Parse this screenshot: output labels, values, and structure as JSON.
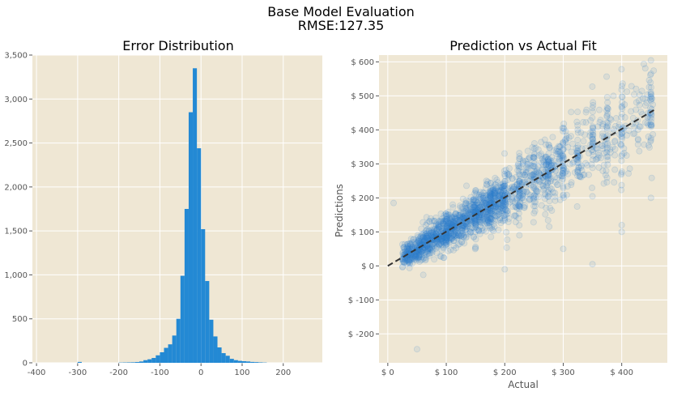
{
  "figure": {
    "title": "Base Model Evaluation",
    "subtitle": "RMSE:127.35",
    "colors": {
      "panel_bg": "#EFE7D4",
      "grid": "#FFFFFF",
      "bar": "#2389D4",
      "point": "#2E7FCC",
      "fit_line": "#333333",
      "tick_text": "#555555"
    }
  },
  "chart_data": [
    {
      "type": "bar",
      "title": "Error Distribution",
      "xlabel": "",
      "ylabel": "",
      "xlim": [
        -410,
        295
      ],
      "ylim": [
        0,
        3500
      ],
      "xticks": [
        -400,
        -300,
        -200,
        -100,
        0,
        100,
        200
      ],
      "xtick_labels": [
        "-400",
        "-300",
        "-200",
        "-100",
        "0",
        "100",
        "200"
      ],
      "yticks": [
        0,
        500,
        1000,
        1500,
        2000,
        2500,
        3000,
        3500
      ],
      "ytick_labels": [
        "0",
        "500",
        "1,000",
        "1,500",
        "2,000",
        "2,500",
        "3,000",
        "3,500"
      ],
      "bin_edges": [
        -300,
        -290,
        -200,
        -190,
        -180,
        -170,
        -160,
        -150,
        -140,
        -130,
        -120,
        -110,
        -100,
        -90,
        -80,
        -70,
        -60,
        -50,
        -40,
        -30,
        -20,
        -10,
        0,
        10,
        20,
        30,
        40,
        50,
        60,
        70,
        80,
        90,
        100,
        110,
        120,
        130,
        140,
        150,
        160,
        170,
        180,
        190,
        200
      ],
      "bins": [
        {
          "x0": -300,
          "x1": -290,
          "count": 10
        },
        {
          "x0": -200,
          "x1": -190,
          "count": 3
        },
        {
          "x0": -190,
          "x1": -180,
          "count": 4
        },
        {
          "x0": -180,
          "x1": -170,
          "count": 5
        },
        {
          "x0": -170,
          "x1": -160,
          "count": 6
        },
        {
          "x0": -160,
          "x1": -150,
          "count": 9
        },
        {
          "x0": -150,
          "x1": -140,
          "count": 15
        },
        {
          "x0": -140,
          "x1": -130,
          "count": 30
        },
        {
          "x0": -130,
          "x1": -120,
          "count": 40
        },
        {
          "x0": -120,
          "x1": -110,
          "count": 55
        },
        {
          "x0": -110,
          "x1": -100,
          "count": 85
        },
        {
          "x0": -100,
          "x1": -90,
          "count": 120
        },
        {
          "x0": -90,
          "x1": -80,
          "count": 170
        },
        {
          "x0": -80,
          "x1": -70,
          "count": 210
        },
        {
          "x0": -70,
          "x1": -60,
          "count": 310
        },
        {
          "x0": -60,
          "x1": -50,
          "count": 500
        },
        {
          "x0": -50,
          "x1": -40,
          "count": 990
        },
        {
          "x0": -40,
          "x1": -30,
          "count": 1750
        },
        {
          "x0": -30,
          "x1": -20,
          "count": 2850
        },
        {
          "x0": -20,
          "x1": -10,
          "count": 3350
        },
        {
          "x0": -10,
          "x1": 0,
          "count": 2440
        },
        {
          "x0": 0,
          "x1": 10,
          "count": 1520
        },
        {
          "x0": 10,
          "x1": 20,
          "count": 930
        },
        {
          "x0": 20,
          "x1": 30,
          "count": 490
        },
        {
          "x0": 30,
          "x1": 40,
          "count": 300
        },
        {
          "x0": 40,
          "x1": 50,
          "count": 175
        },
        {
          "x0": 50,
          "x1": 60,
          "count": 110
        },
        {
          "x0": 60,
          "x1": 70,
          "count": 80
        },
        {
          "x0": 70,
          "x1": 80,
          "count": 45
        },
        {
          "x0": 80,
          "x1": 90,
          "count": 30
        },
        {
          "x0": 90,
          "x1": 100,
          "count": 22
        },
        {
          "x0": 100,
          "x1": 110,
          "count": 18
        },
        {
          "x0": 110,
          "x1": 120,
          "count": 15
        },
        {
          "x0": 120,
          "x1": 130,
          "count": 10
        },
        {
          "x0": 130,
          "x1": 140,
          "count": 8
        },
        {
          "x0": 140,
          "x1": 150,
          "count": 5
        },
        {
          "x0": 150,
          "x1": 160,
          "count": 3
        }
      ],
      "grid": true
    },
    {
      "type": "scatter",
      "title": "Prediction vs Actual Fit",
      "xlabel": "Actual",
      "ylabel": "Predictions",
      "xlim": [
        -15,
        478
      ],
      "ylim": [
        -285,
        620
      ],
      "xticks": [
        0,
        100,
        200,
        300,
        400
      ],
      "xtick_labels": [
        "$ 0",
        "$ 100",
        "$ 200",
        "$ 300",
        "$ 400"
      ],
      "yticks": [
        -200,
        -100,
        0,
        100,
        200,
        300,
        400,
        500,
        600
      ],
      "ytick_labels": [
        "$ -200",
        "$ -100",
        "$ 0",
        "$ 100",
        "$ 200",
        "$ 300",
        "$ 400",
        "$ 500",
        "$ 600"
      ],
      "fit_line": {
        "x": [
          0,
          455
        ],
        "y": [
          0,
          458
        ],
        "style": "dashed"
      },
      "point_bands": [
        {
          "x_range": [
            25,
            60
          ],
          "y_center_slope": 1.0,
          "spread": 18,
          "count": 220
        },
        {
          "x_range": [
            60,
            120
          ],
          "y_center_slope": 1.0,
          "spread": 25,
          "count": 420
        },
        {
          "x_range": [
            120,
            200
          ],
          "y_center_slope": 1.0,
          "spread": 32,
          "count": 520
        },
        {
          "x_range": [
            200,
            300
          ],
          "y_center_slope": 1.0,
          "spread": 45,
          "count": 300
        },
        {
          "x_range": [
            300,
            455
          ],
          "y_center_slope": 1.0,
          "spread": 60,
          "count": 180
        }
      ],
      "vertical_clusters_x": [
        100,
        150,
        175,
        200,
        225,
        250,
        275,
        300,
        325,
        350,
        375,
        400,
        450
      ],
      "notable_points": [
        {
          "x": 50,
          "y": -245
        },
        {
          "x": 10,
          "y": 185
        },
        {
          "x": 250,
          "y": 330
        },
        {
          "x": 450,
          "y": 565
        },
        {
          "x": 450,
          "y": 200
        },
        {
          "x": 400,
          "y": 120
        },
        {
          "x": 400,
          "y": 100
        },
        {
          "x": 350,
          "y": 5
        },
        {
          "x": 300,
          "y": 50
        },
        {
          "x": 225,
          "y": 90
        },
        {
          "x": 200,
          "y": -10
        }
      ],
      "grid": true
    }
  ]
}
